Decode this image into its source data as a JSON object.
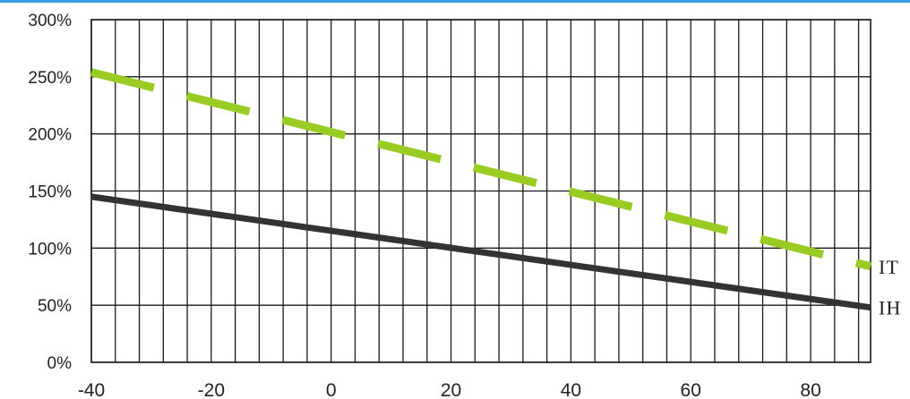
{
  "colors": {
    "accent_bar": "#3aa0e0",
    "it_line": "#99cc22",
    "ih_line": "#333333",
    "grid": "#1a1a1a"
  },
  "chart_data": {
    "type": "line",
    "xlim": [
      -40,
      90
    ],
    "ylim": [
      0,
      300
    ],
    "x_ticks": [
      -40,
      -20,
      0,
      20,
      40,
      60,
      80
    ],
    "x_tick_labels": [
      "-40",
      "-20",
      "0",
      "20",
      "40",
      "60",
      "80"
    ],
    "y_ticks": [
      0,
      50,
      100,
      150,
      200,
      250,
      300
    ],
    "y_tick_labels": [
      "0%",
      "50%",
      "100%",
      "150%",
      "200%",
      "250%",
      "300%"
    ],
    "x_grid_step": 4,
    "series": [
      {
        "name": "IT",
        "style": "dashed",
        "color": "#99cc22",
        "x": [
          -40,
          90
        ],
        "y": [
          254,
          84
        ]
      },
      {
        "name": "IH",
        "style": "solid",
        "color": "#333333",
        "x": [
          -40,
          90
        ],
        "y": [
          145,
          48
        ]
      }
    ]
  }
}
